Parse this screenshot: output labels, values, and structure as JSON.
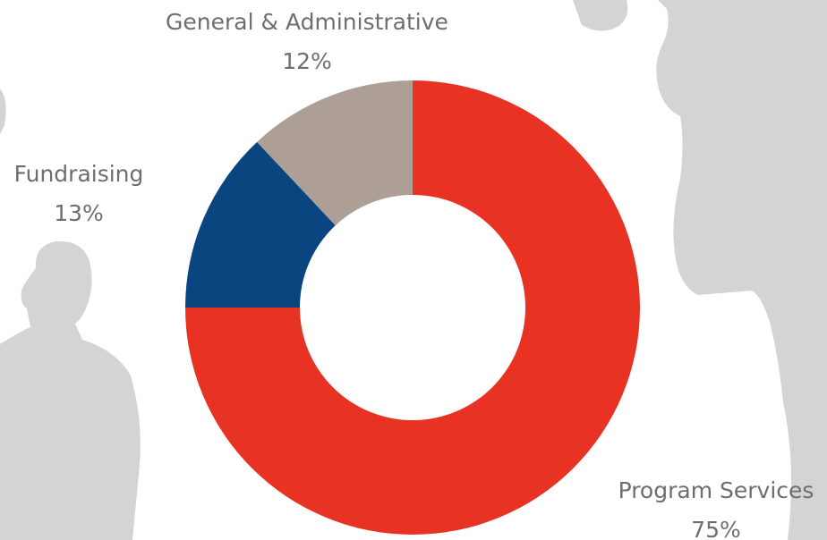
{
  "chart_data": {
    "type": "donut",
    "categories": [
      "Program Services",
      "Fundraising",
      "General & Administrative"
    ],
    "values": [
      75,
      13,
      12
    ],
    "value_labels": [
      "75%",
      "13%",
      "12%"
    ],
    "colors": [
      "#e83324",
      "#0b4580",
      "#ad9f96"
    ]
  }
}
